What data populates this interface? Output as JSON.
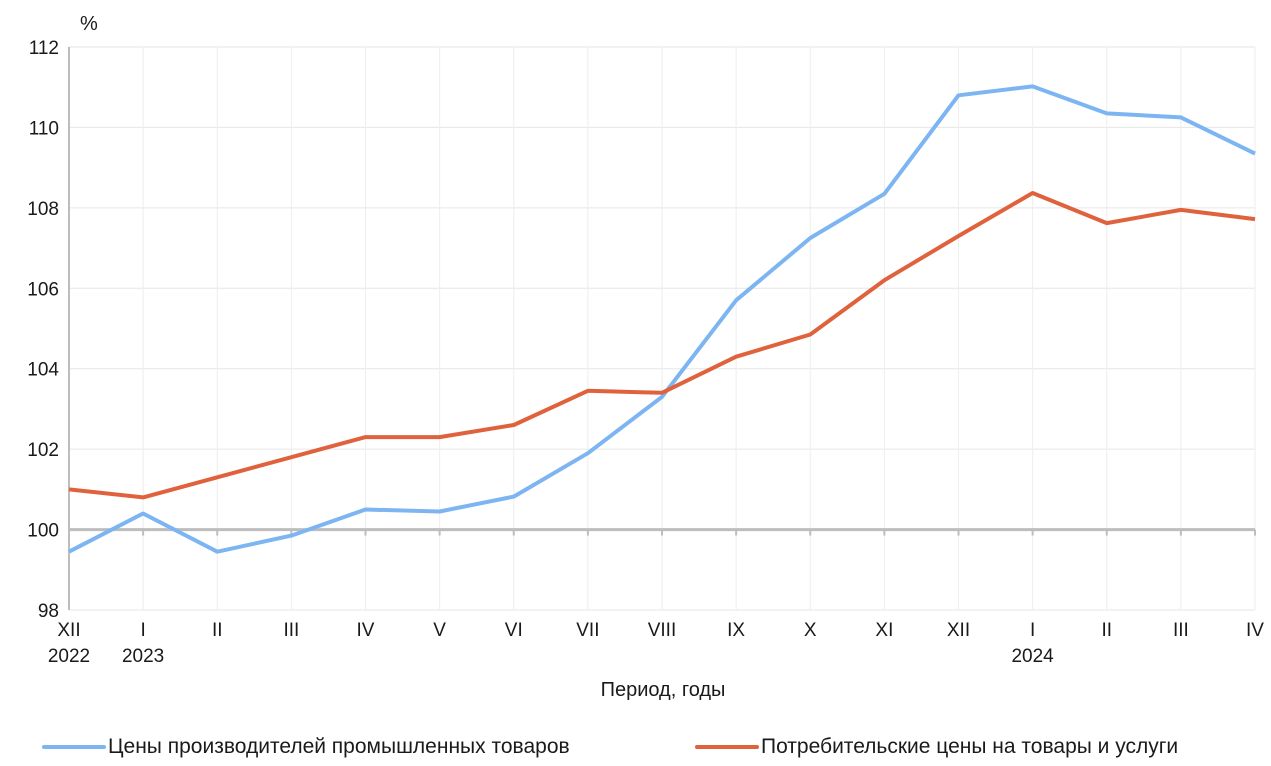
{
  "chart_data": {
    "type": "line",
    "ylabel": "%",
    "xlabel": "Период, годы",
    "ylim": [
      98,
      112
    ],
    "yticks": [
      "98",
      "100",
      "102",
      "104",
      "106",
      "108",
      "110",
      "112"
    ],
    "categories": [
      "XII",
      "I",
      "II",
      "III",
      "IV",
      "V",
      "VI",
      "VII",
      "VIII",
      "IX",
      "X",
      "XI",
      "XII",
      "I",
      "II",
      "III",
      "IV"
    ],
    "year_labels": [
      {
        "index": 0,
        "label": "2022"
      },
      {
        "index": 1,
        "label": "2023"
      },
      {
        "index": 13,
        "label": "2024"
      }
    ],
    "grid": true,
    "legend_position": "bottom",
    "series": [
      {
        "name": "Цены производителей промышленных товаров",
        "color": "#7db5f2",
        "values": [
          99.45,
          100.4,
          99.45,
          99.85,
          100.5,
          100.45,
          100.82,
          101.9,
          103.3,
          105.7,
          107.25,
          108.35,
          110.8,
          111.02,
          110.35,
          110.25,
          109.35
        ]
      },
      {
        "name": "Потребительские цены на товары и услуги",
        "color": "#e0623d",
        "values": [
          101.0,
          100.8,
          101.3,
          101.8,
          102.3,
          102.3,
          102.6,
          103.45,
          103.4,
          104.3,
          104.85,
          106.2,
          107.3,
          108.37,
          107.62,
          107.95,
          107.72
        ]
      }
    ]
  }
}
